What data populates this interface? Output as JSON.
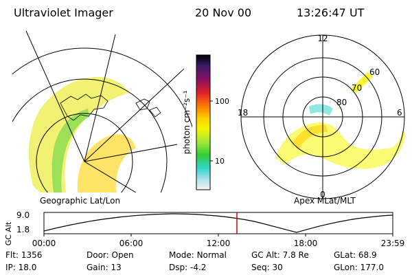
{
  "header": {
    "instrument": "Ultraviolet Imager",
    "date": "20 Nov 00",
    "time": "13:26:47 UT"
  },
  "colorbar": {
    "label": "photon cm⁻²s⁻¹",
    "ticks": [
      "100",
      "10"
    ],
    "scale": "log"
  },
  "panels": {
    "left_caption": "Geographic Lat/Lon",
    "right_caption": "Apex MLat/MLT",
    "polar_hour_labels": [
      "12",
      "18",
      "6",
      "0"
    ],
    "polar_lat_labels": [
      "60",
      "70",
      "80"
    ]
  },
  "orbit": {
    "axis_label": "GC Alt",
    "y_ticks": [
      "9.0",
      "1.8"
    ],
    "x_ticks": [
      "00:00",
      "06:00",
      "12:00",
      "18:00",
      "23:59"
    ],
    "marker_time": "13:26:47",
    "marker_color": "#cc0000"
  },
  "footer": {
    "row1": [
      {
        "key": "Flt:",
        "value": "1356"
      },
      {
        "key": "Door:",
        "value": "Open"
      },
      {
        "key": "Mode:",
        "value": "Normal"
      },
      {
        "key": "GC Alt:",
        "value": "7.8 Re"
      },
      {
        "key": "GLat:",
        "value": "68.9"
      }
    ],
    "row2": [
      {
        "key": "IP:",
        "value": "18.0"
      },
      {
        "key": "Gain:",
        "value": "13"
      },
      {
        "key": "Dsp:",
        "value": "-4.2"
      },
      {
        "key": "Seq:",
        "value": "30"
      },
      {
        "key": "GLon:",
        "value": "177.0"
      }
    ]
  }
}
